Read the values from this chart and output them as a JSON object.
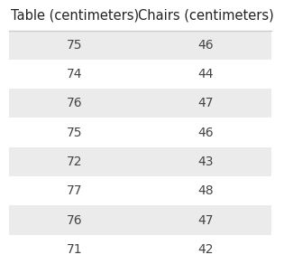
{
  "columns": [
    "Table (centimeters)",
    "Chairs (centimeters)"
  ],
  "rows": [
    [
      75,
      46
    ],
    [
      74,
      44
    ],
    [
      76,
      47
    ],
    [
      75,
      46
    ],
    [
      72,
      43
    ],
    [
      77,
      48
    ],
    [
      76,
      47
    ],
    [
      71,
      42
    ]
  ],
  "shaded_rows": [
    0,
    2,
    4,
    6
  ],
  "row_color_shaded": "#ebebeb",
  "row_color_plain": "#ffffff",
  "header_color": "#ffffff",
  "text_color": "#444444",
  "header_text_color": "#222222",
  "font_size": 10,
  "header_font_size": 10.5,
  "line_color": "#cccccc"
}
